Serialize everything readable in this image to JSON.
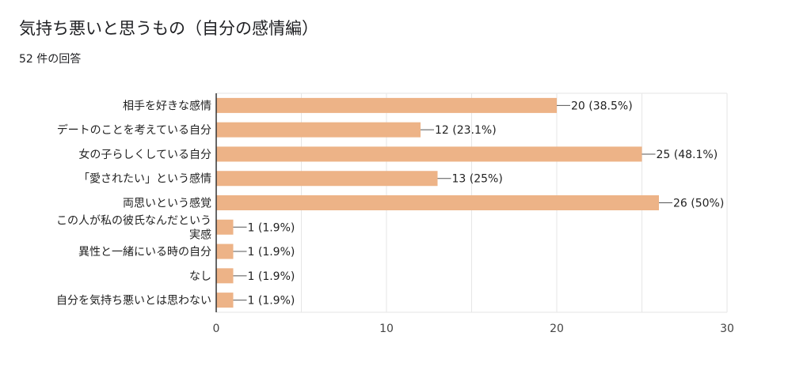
{
  "header": {
    "title": "気持ち悪いと思うもの（自分の感情編）",
    "response_count": "52 件の回答"
  },
  "colors": {
    "bar": "#EDB387",
    "grid": "#E6E6E6",
    "axis": "#333333",
    "leader": "#555555"
  },
  "chart_data": {
    "type": "bar",
    "orientation": "horizontal",
    "title": "気持ち悪いと思うもの（自分の感情編）",
    "xlabel": "",
    "ylabel": "",
    "categories": [
      "相手を好きな感情",
      "デートのことを考えている自分",
      "女の子らしくしている自分",
      "「愛されたい」という感情",
      "両思いという感覚",
      "この人が私の彼氏なんだという実感",
      "異性と一緒にいる時の自分",
      "なし",
      "自分を気持ち悪いとは思わない"
    ],
    "category_lines": [
      [
        "相手を好きな感情"
      ],
      [
        "デートのことを考えている自分"
      ],
      [
        "女の子らしくしている自分"
      ],
      [
        "「愛されたい」という感情"
      ],
      [
        "両思いという感覚"
      ],
      [
        "この人が私の彼氏なんだという",
        "実感"
      ],
      [
        "異性と一緒にいる時の自分"
      ],
      [
        "なし"
      ],
      [
        "自分を気持ち悪いとは思わない"
      ]
    ],
    "values": [
      20,
      12,
      25,
      13,
      26,
      1,
      1,
      1,
      1
    ],
    "data_labels": [
      "20 (38.5%)",
      "12 (23.1%)",
      "25 (48.1%)",
      "13 (25%)",
      "26 (50%)",
      "1 (1.9%)",
      "1 (1.9%)",
      "1 (1.9%)",
      "1 (1.9%)"
    ],
    "xlim": [
      0,
      30
    ],
    "xticks": [
      0,
      10,
      20,
      30
    ],
    "xtick_labels": [
      "0",
      "10",
      "20",
      "30"
    ],
    "grid": true,
    "legend": "none"
  }
}
